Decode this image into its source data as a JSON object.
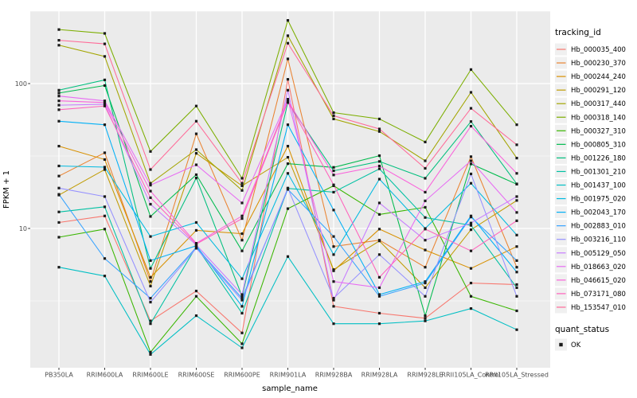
{
  "chart_data": {
    "type": "line",
    "title": "",
    "xlabel": "sample_name",
    "ylabel": "FPKM + 1",
    "y_scale": "log10",
    "y_ticks": [
      10,
      100
    ],
    "y_minor_breaks": [
      3.162,
      31.623,
      316.228
    ],
    "ylim": [
      1.1,
      316
    ],
    "grid": "on",
    "legend_position": "right",
    "point_shape": "filled-square",
    "point_color": "#1a1a1a",
    "legend": {
      "color_title": "tracking_id",
      "shape_title": "quant_status",
      "shape_label": "OK"
    },
    "categories": [
      "PB350LA",
      "RRIM600LA",
      "RRIM600LE",
      "RRIM600SE",
      "RRIM600PE",
      "RRIM901LA",
      "RRIM928BA",
      "RRIM928LA",
      "RRIM928LE",
      "RRII105LA_Control",
      "RRII105LA_Stressed"
    ],
    "series": [
      {
        "name": "Hb_000035_400",
        "color": "#F8766D",
        "values": [
          11,
          12.2,
          2.3,
          3.7,
          1.9,
          107,
          2.9,
          2.6,
          2.4,
          4.2,
          4.1
        ]
      },
      {
        "name": "Hb_000230_370",
        "color": "#EA8331",
        "values": [
          23,
          33.3,
          4.3,
          45,
          8.3,
          148,
          7.5,
          8.3,
          5.4,
          31.3,
          5.4
        ]
      },
      {
        "name": "Hb_000244_240",
        "color": "#D89000",
        "values": [
          37,
          29.9,
          4.6,
          9.7,
          9.2,
          37,
          5.1,
          9.9,
          7.1,
          5.3,
          7.5
        ]
      },
      {
        "name": "Hb_000291_120",
        "color": "#C09B00",
        "values": [
          17,
          25.5,
          4.0,
          33,
          19.7,
          31,
          5.2,
          8.2,
          3.9,
          9.8,
          15.6
        ]
      },
      {
        "name": "Hb_000317_440",
        "color": "#A3A500",
        "values": [
          184,
          154,
          20.5,
          35,
          18.3,
          214,
          57,
          46.7,
          29.3,
          87,
          30.6
        ]
      },
      {
        "name": "Hb_000318_140",
        "color": "#7CAE00",
        "values": [
          236,
          222,
          34,
          70,
          22.2,
          273,
          63,
          57,
          39.5,
          125,
          52
        ]
      },
      {
        "name": "Hb_000327_310",
        "color": "#39B600",
        "values": [
          8.7,
          9.9,
          1.4,
          3.4,
          1.6,
          13.7,
          19.7,
          12.5,
          14,
          3.4,
          2.7
        ]
      },
      {
        "name": "Hb_000805_310",
        "color": "#00BB4E",
        "values": [
          86,
          97,
          12.1,
          23.5,
          7,
          28,
          26.4,
          31.8,
          2.5,
          27.9,
          20.2
        ]
      },
      {
        "name": "Hb_001226_180",
        "color": "#00BF7D",
        "values": [
          90,
          106,
          5.3,
          22.3,
          3.4,
          74,
          25,
          29,
          22.2,
          54.7,
          20.3
        ]
      },
      {
        "name": "Hb_001301_210",
        "color": "#00C1A3",
        "values": [
          13,
          14.1,
          2.2,
          7.5,
          2.6,
          18.9,
          17.8,
          25.8,
          11.9,
          10.5,
          3.9
        ]
      },
      {
        "name": "Hb_001437_100",
        "color": "#00BFC4",
        "values": [
          5.4,
          4.7,
          1.35,
          2.5,
          1.5,
          6.4,
          2.2,
          2.2,
          2.3,
          2.8,
          2.0
        ]
      },
      {
        "name": "Hb_001975_020",
        "color": "#00BAE0",
        "values": [
          27,
          26.5,
          8.8,
          11,
          4.5,
          24,
          6.6,
          21.9,
          10,
          20.5,
          9
        ]
      },
      {
        "name": "Hb_002043_170",
        "color": "#00B0F6",
        "values": [
          55,
          52,
          6,
          7.6,
          2.9,
          52,
          13.4,
          3.5,
          4.3,
          12.2,
          5
        ]
      },
      {
        "name": "Hb_002883_010",
        "color": "#35A2FF",
        "values": [
          17.2,
          6.2,
          3.3,
          7.4,
          3.3,
          18.6,
          8.8,
          3.4,
          4.2,
          12,
          6
        ]
      },
      {
        "name": "Hb_003216_110",
        "color": "#9590FF",
        "values": [
          19,
          16.6,
          3.1,
          7.3,
          3.2,
          19,
          3.3,
          6.6,
          3.4,
          23.8,
          3.4
        ]
      },
      {
        "name": "Hb_005129_050",
        "color": "#C77CFF",
        "values": [
          71,
          72,
          14.7,
          7.7,
          3.5,
          90,
          3.2,
          15,
          8.3,
          10.9,
          16.6
        ]
      },
      {
        "name": "Hb_018663_020",
        "color": "#E76BF3",
        "values": [
          82,
          76,
          19.9,
          27.5,
          15,
          78,
          4.3,
          3.9,
          15.5,
          29.3,
          12.9
        ]
      },
      {
        "name": "Hb_046615_020",
        "color": "#FA62DB",
        "values": [
          76,
          74,
          18.1,
          7.9,
          12.2,
          76,
          23.4,
          27,
          17.8,
          50.8,
          24
        ]
      },
      {
        "name": "Hb_073171_080",
        "color": "#FF62BC",
        "values": [
          66,
          70,
          16.3,
          7.8,
          11.7,
          75,
          20,
          4.6,
          9.9,
          7,
          11.3
        ]
      },
      {
        "name": "Hb_153547_010",
        "color": "#FF6A98",
        "values": [
          199,
          188,
          25.5,
          55,
          20.5,
          190,
          60,
          48.6,
          26,
          67.5,
          37.8
        ]
      }
    ]
  },
  "theme": {
    "panel_bg": "#EBEBEB",
    "grid_color": "#FFFFFF",
    "tick_text_color": "#4D4D4D",
    "axis_title_color": "#000000",
    "tick_mark_color": "#333333",
    "legend_key_bg": "#F0F0F0"
  }
}
